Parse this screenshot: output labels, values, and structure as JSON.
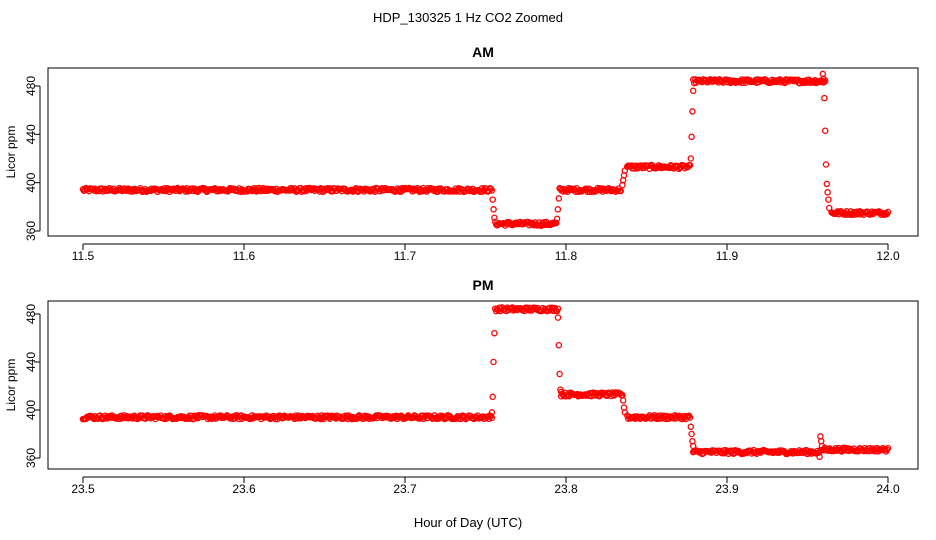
{
  "figure": {
    "title": "HDP_130325  1 Hz CO2 Zoomed",
    "xlabel": "Hour of Day (UTC)"
  },
  "chart_data": [
    {
      "type": "scatter",
      "title": "AM",
      "xlabel": "Hour of Day (UTC)",
      "ylabel": "Licor ppm",
      "xlim": [
        11.5,
        12.0
      ],
      "ylim": [
        358,
        496
      ],
      "xticks": [
        "11.5",
        "11.6",
        "11.7",
        "11.8",
        "11.9",
        "12.0"
      ],
      "yticks": [
        "360",
        "400",
        "440",
        "480"
      ],
      "grid": false,
      "marker_color": "#ff0000",
      "segments": [
        {
          "x0": 11.5,
          "x1": 11.754,
          "y": 394
        },
        {
          "x0": 11.756,
          "x1": 11.794,
          "y": 366
        },
        {
          "x0": 11.796,
          "x1": 11.834,
          "y": 394
        },
        {
          "x0": 11.838,
          "x1": 11.877,
          "y": 413
        },
        {
          "x0": 11.879,
          "x1": 11.961,
          "y": 484
        },
        {
          "x0": 11.965,
          "x1": 12.0,
          "y": 375
        }
      ],
      "transitions": [
        {
          "x": [
            11.7545,
            11.755,
            11.7555
          ],
          "y": [
            386,
            378,
            371
          ]
        },
        {
          "x": [
            11.7945,
            11.795,
            11.7955
          ],
          "y": [
            370,
            378,
            387
          ]
        },
        {
          "x": [
            11.835,
            11.8355,
            11.836,
            11.8365
          ],
          "y": [
            398,
            402,
            406,
            410
          ]
        },
        {
          "x": [
            11.8775,
            11.878,
            11.8785,
            11.879
          ],
          "y": [
            420,
            438,
            459,
            476
          ]
        },
        {
          "x": [
            11.9595,
            11.96,
            11.9605,
            11.961,
            11.9615,
            11.962,
            11.9625,
            11.963,
            11.9635
          ],
          "y": [
            490,
            486,
            470,
            443,
            415,
            399,
            392,
            386,
            379
          ]
        }
      ]
    },
    {
      "type": "scatter",
      "title": "PM",
      "xlabel": "Hour of Day (UTC)",
      "ylabel": "Licor ppm",
      "xlim": [
        23.5,
        24.0
      ],
      "ylim": [
        358,
        490
      ],
      "xticks": [
        "23.5",
        "23.6",
        "23.7",
        "23.8",
        "23.9",
        "24.0"
      ],
      "yticks": [
        "360",
        "400",
        "440",
        "480"
      ],
      "grid": false,
      "marker_color": "#ff0000",
      "segments": [
        {
          "x0": 23.5,
          "x1": 23.754,
          "y": 394
        },
        {
          "x0": 23.756,
          "x1": 23.795,
          "y": 484
        },
        {
          "x0": 23.797,
          "x1": 23.835,
          "y": 413
        },
        {
          "x0": 23.838,
          "x1": 23.877,
          "y": 394
        },
        {
          "x0": 23.879,
          "x1": 23.958,
          "y": 365
        },
        {
          "x0": 23.96,
          "x1": 24.0,
          "y": 367
        }
      ],
      "transitions": [
        {
          "x": [
            23.754,
            23.7545,
            23.755,
            23.7555
          ],
          "y": [
            398,
            411,
            440,
            464
          ]
        },
        {
          "x": [
            23.795,
            23.7955,
            23.796,
            23.7965,
            23.797
          ],
          "y": [
            477,
            454,
            430,
            417,
            415
          ]
        },
        {
          "x": [
            23.8355,
            23.836,
            23.8365
          ],
          "y": [
            408,
            402,
            398
          ]
        },
        {
          "x": [
            23.8775,
            23.878,
            23.8785,
            23.879
          ],
          "y": [
            386,
            380,
            374,
            370
          ]
        },
        {
          "x": [
            23.9575,
            23.958,
            23.9585,
            23.959,
            23.9595
          ],
          "y": [
            361,
            378,
            374,
            370,
            367
          ]
        }
      ]
    }
  ]
}
